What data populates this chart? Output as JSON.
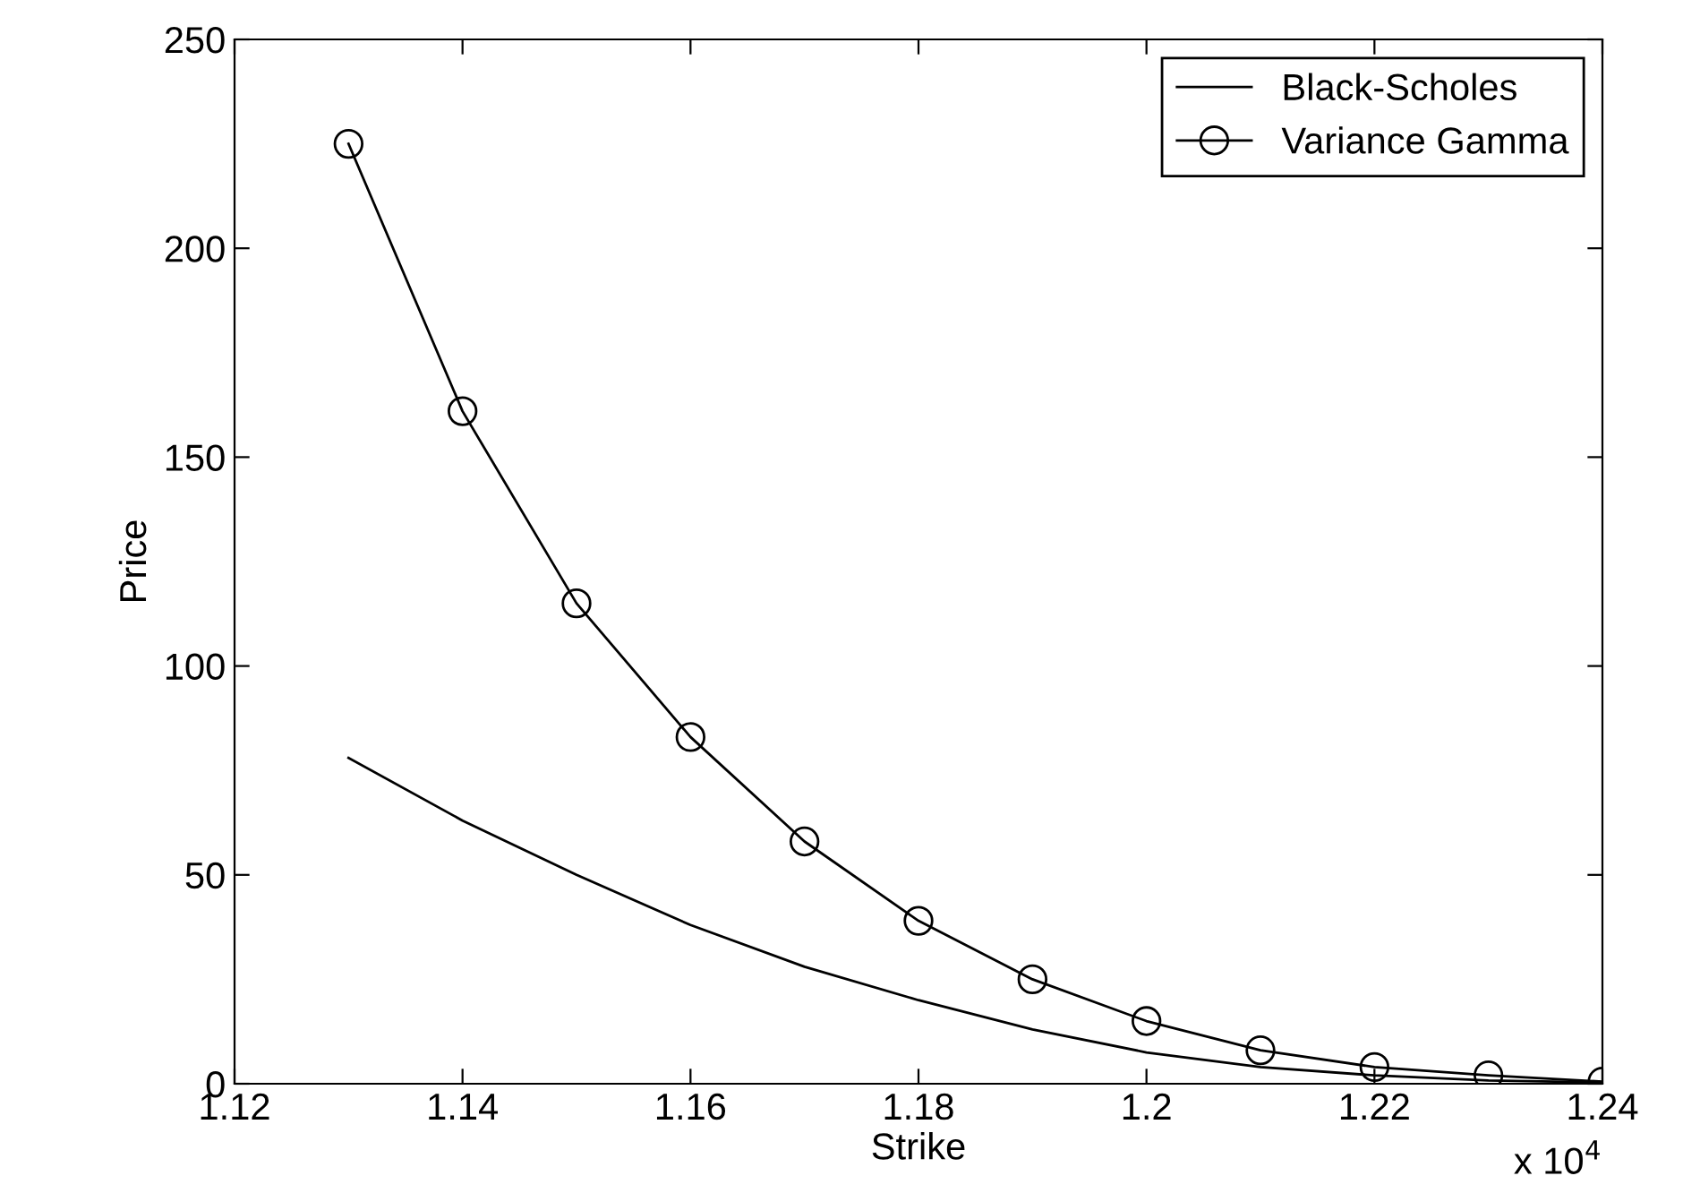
{
  "chart_data": {
    "type": "line",
    "xlabel": "Strike",
    "ylabel": "Price",
    "x": [
      1.13,
      1.14,
      1.15,
      1.16,
      1.17,
      1.18,
      1.19,
      1.2,
      1.21,
      1.22,
      1.23,
      1.24
    ],
    "series": [
      {
        "name": "Black-Scholes",
        "color": "#000000",
        "marker": "none",
        "values": [
          78,
          63,
          50,
          38,
          28,
          20,
          13,
          7.5,
          4,
          2,
          0.8,
          0.3
        ]
      },
      {
        "name": "Variance Gamma",
        "color": "#000000",
        "marker": "circle",
        "values": [
          225,
          161,
          115,
          83,
          58,
          39,
          25,
          15,
          8,
          4,
          2,
          0.5
        ]
      }
    ],
    "xlim": [
      1.12,
      1.24
    ],
    "xticks": [
      1.12,
      1.14,
      1.16,
      1.18,
      1.2,
      1.22,
      1.24
    ],
    "ylim": [
      0,
      250
    ],
    "yticks": [
      0,
      50,
      100,
      150,
      200,
      250
    ],
    "annotations": [
      "x 10$^{4}$"
    ],
    "legend": "top right",
    "grid": false,
    "line_style": "solid"
  }
}
